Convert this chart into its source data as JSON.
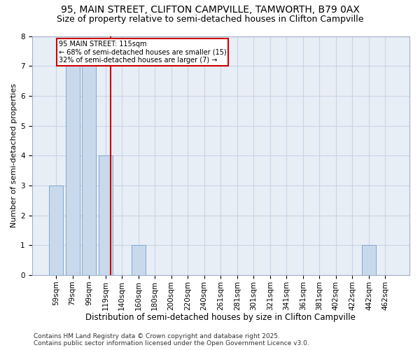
{
  "title1": "95, MAIN STREET, CLIFTON CAMPVILLE, TAMWORTH, B79 0AX",
  "title2": "Size of property relative to semi-detached houses in Clifton Campville",
  "xlabel": "Distribution of semi-detached houses by size in Clifton Campville",
  "ylabel": "Number of semi-detached properties",
  "categories": [
    "59sqm",
    "79sqm",
    "99sqm",
    "119sqm",
    "140sqm",
    "160sqm",
    "180sqm",
    "200sqm",
    "220sqm",
    "240sqm",
    "261sqm",
    "281sqm",
    "301sqm",
    "321sqm",
    "341sqm",
    "361sqm",
    "381sqm",
    "402sqm",
    "422sqm",
    "442sqm",
    "462sqm"
  ],
  "values": [
    3,
    7,
    7,
    4,
    0,
    1,
    0,
    0,
    0,
    0,
    0,
    0,
    0,
    0,
    0,
    0,
    0,
    0,
    0,
    1,
    0
  ],
  "bar_color": "#c9d9ec",
  "bar_edge_color": "#7fa8d0",
  "grid_color": "#c8d4e4",
  "background_color": "#e8eef6",
  "red_line_x": 3.0,
  "annotation_title": "95 MAIN STREET: 115sqm",
  "annotation_line1": "← 68% of semi-detached houses are smaller (15)",
  "annotation_line2": "32% of semi-detached houses are larger (7) →",
  "annotation_color": "#cc0000",
  "footer1": "Contains HM Land Registry data © Crown copyright and database right 2025.",
  "footer2": "Contains public sector information licensed under the Open Government Licence v3.0.",
  "ylim": [
    0,
    8
  ],
  "yticks": [
    0,
    1,
    2,
    3,
    4,
    5,
    6,
    7,
    8
  ],
  "title1_fontsize": 10,
  "title2_fontsize": 9,
  "xlabel_fontsize": 8.5,
  "ylabel_fontsize": 8,
  "tick_fontsize": 7.5,
  "footer_fontsize": 6.5
}
